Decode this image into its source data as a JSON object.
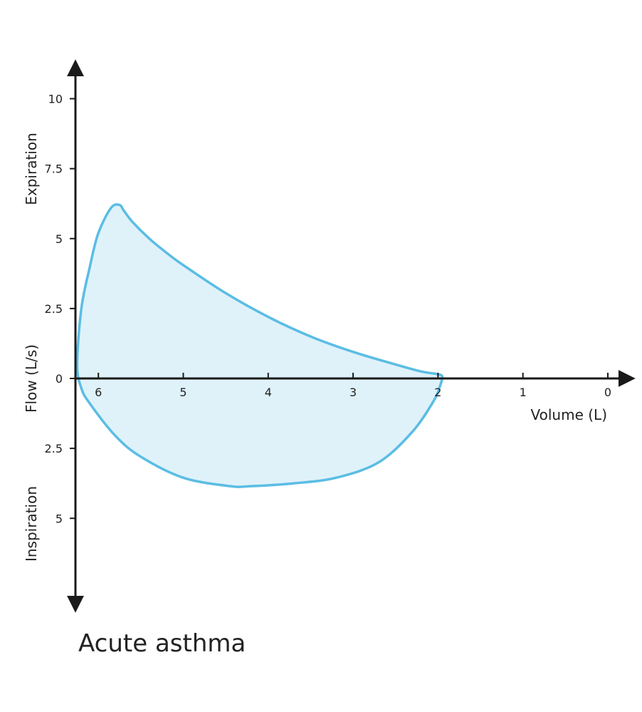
{
  "chart_data": {
    "type": "line",
    "title": "Acute asthma",
    "xlabel": "Volume (L)",
    "ylabel": "Flow (L/s)",
    "expiration_label": "Expiration",
    "inspiration_label": "Inspiration",
    "xlim": [
      6.3,
      0
    ],
    "ylim": [
      -8,
      11
    ],
    "x_ticks": [
      {
        "value": 6,
        "label": "6"
      },
      {
        "value": 5,
        "label": "5"
      },
      {
        "value": 4,
        "label": "4"
      },
      {
        "value": 3,
        "label": "3"
      },
      {
        "value": 2,
        "label": "2"
      },
      {
        "value": 1,
        "label": "1"
      },
      {
        "value": 0,
        "label": "0"
      }
    ],
    "y_ticks": [
      {
        "value": 10,
        "label": "10"
      },
      {
        "value": 7.5,
        "label": "7.5"
      },
      {
        "value": 5,
        "label": "5"
      },
      {
        "value": 2.5,
        "label": "2.5"
      },
      {
        "value": 0,
        "label": "0"
      },
      {
        "value": -2.5,
        "label": "2.5"
      },
      {
        "value": -5,
        "label": "5"
      }
    ],
    "grid": false,
    "colors": {
      "line": "#5bbde4",
      "fill": "#dff2fa",
      "axis": "#1a1a1a"
    },
    "series": [
      {
        "x": [
          6.25,
          6.2,
          6.1,
          6.0,
          5.85,
          5.75,
          5.7,
          5.6,
          5.4,
          5.2,
          5.0,
          4.5,
          4.0,
          3.5,
          3.0,
          2.5,
          2.2,
          2.0,
          1.95,
          1.98,
          2.05,
          2.3,
          2.7,
          3.2,
          3.7,
          4.2,
          4.45,
          5.0,
          5.5,
          5.8,
          6.1,
          6.2,
          6.25
        ],
        "y": [
          0.5,
          2.5,
          4.0,
          5.2,
          6.1,
          6.2,
          6.0,
          5.6,
          5.0,
          4.5,
          4.05,
          3.05,
          2.2,
          1.5,
          0.95,
          0.5,
          0.25,
          0.15,
          0.05,
          -0.3,
          -0.8,
          -1.9,
          -3.0,
          -3.55,
          -3.75,
          -3.85,
          -3.85,
          -3.55,
          -2.8,
          -2.05,
          -0.9,
          -0.35,
          0.5
        ]
      }
    ]
  }
}
